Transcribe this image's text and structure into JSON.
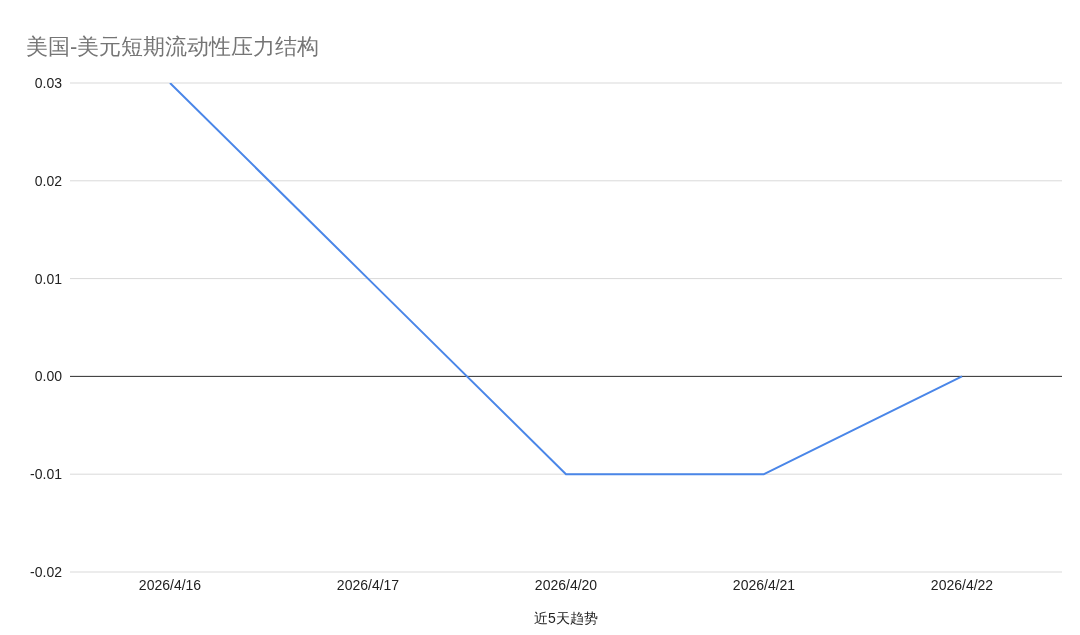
{
  "chart_data": {
    "type": "line",
    "title": "美国-美元短期流动性压力结构",
    "xlabel": "近5天趋势",
    "categories": [
      "2026/4/16",
      "2026/4/17",
      "2026/4/20",
      "2026/4/21",
      "2026/4/22"
    ],
    "series": [
      {
        "color": "#4a86e8",
        "values": [
          0.03,
          0.01,
          -0.01,
          -0.01,
          0
        ]
      }
    ],
    "ylim": [
      -0.02,
      0.03
    ],
    "yticks": [
      -0.02,
      -0.01,
      {
        "value": 0,
        "label": "0.00"
      },
      0.01,
      0.02,
      0.03
    ],
    "grid": "y",
    "marker": "none",
    "line_style": "solid",
    "ref_lines": [
      {
        "axis": "y",
        "value": 0,
        "color": "#333333"
      }
    ]
  }
}
